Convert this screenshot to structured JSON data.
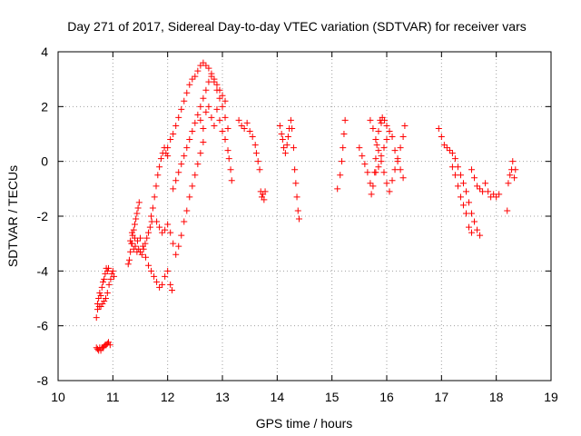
{
  "chart_data": {
    "type": "scatter",
    "title": "Day 271 of 2017, Sidereal Day-to-day VTEC variation (SDTVAR) for receiver vars",
    "xlabel": "GPS time / hours",
    "ylabel": "SDTVAR / TECUs",
    "xlim": [
      10,
      19
    ],
    "ylim": [
      -8,
      4
    ],
    "xticks": [
      10,
      11,
      12,
      13,
      14,
      15,
      16,
      17,
      18,
      19
    ],
    "yticks": [
      -8,
      -6,
      -4,
      -2,
      0,
      2,
      4
    ],
    "grid": true,
    "marker": "+",
    "color": "#ff0000",
    "series": [
      {
        "name": "SDTVAR",
        "points": [
          [
            10.7,
            -5.7
          ],
          [
            10.72,
            -5.4
          ],
          [
            10.74,
            -5.0
          ],
          [
            10.76,
            -4.8
          ],
          [
            10.78,
            -4.9
          ],
          [
            10.8,
            -4.6
          ],
          [
            10.82,
            -4.4
          ],
          [
            10.84,
            -4.3
          ],
          [
            10.86,
            -4.1
          ],
          [
            10.88,
            -3.9
          ],
          [
            10.9,
            -4.0
          ],
          [
            10.92,
            -3.9
          ],
          [
            10.72,
            -5.2
          ],
          [
            10.75,
            -5.3
          ],
          [
            10.78,
            -5.3
          ],
          [
            10.81,
            -5.2
          ],
          [
            10.84,
            -5.1
          ],
          [
            10.87,
            -5.0
          ],
          [
            10.9,
            -4.8
          ],
          [
            10.93,
            -4.5
          ],
          [
            10.96,
            -4.3
          ],
          [
            10.98,
            -4.1
          ],
          [
            11.0,
            -4.0
          ],
          [
            11.02,
            -4.2
          ],
          [
            10.7,
            -6.8
          ],
          [
            10.72,
            -6.85
          ],
          [
            10.74,
            -6.9
          ],
          [
            10.76,
            -6.8
          ],
          [
            10.78,
            -6.9
          ],
          [
            10.8,
            -6.8
          ],
          [
            10.82,
            -6.8
          ],
          [
            10.84,
            -6.75
          ],
          [
            10.86,
            -6.7
          ],
          [
            10.88,
            -6.7
          ],
          [
            10.9,
            -6.65
          ],
          [
            10.92,
            -6.6
          ],
          [
            10.95,
            -6.7
          ],
          [
            11.28,
            -3.75
          ],
          [
            11.3,
            -3.6
          ],
          [
            11.32,
            -3.3
          ],
          [
            11.34,
            -3.0
          ],
          [
            11.36,
            -2.7
          ],
          [
            11.38,
            -2.5
          ],
          [
            11.4,
            -2.3
          ],
          [
            11.42,
            -2.1
          ],
          [
            11.44,
            -1.9
          ],
          [
            11.46,
            -1.7
          ],
          [
            11.48,
            -1.5
          ],
          [
            11.32,
            -2.9
          ],
          [
            11.35,
            -3.0
          ],
          [
            11.38,
            -3.2
          ],
          [
            11.41,
            -3.1
          ],
          [
            11.44,
            -3.3
          ],
          [
            11.47,
            -3.2
          ],
          [
            11.5,
            -3.3
          ],
          [
            11.53,
            -3.4
          ],
          [
            11.56,
            -3.2
          ],
          [
            11.59,
            -3.0
          ],
          [
            11.62,
            -2.8
          ],
          [
            11.65,
            -2.6
          ],
          [
            11.68,
            -2.4
          ],
          [
            11.71,
            -2.2
          ],
          [
            11.35,
            -2.6
          ],
          [
            11.4,
            -2.8
          ],
          [
            11.45,
            -2.9
          ],
          [
            11.5,
            -2.8
          ],
          [
            11.55,
            -3.1
          ],
          [
            11.6,
            -3.5
          ],
          [
            11.65,
            -3.8
          ],
          [
            11.7,
            -4.0
          ],
          [
            11.75,
            -4.2
          ],
          [
            11.8,
            -4.4
          ],
          [
            11.85,
            -4.6
          ],
          [
            11.9,
            -4.5
          ],
          [
            11.95,
            -4.2
          ],
          [
            12.0,
            -4.0
          ],
          [
            12.05,
            -4.5
          ],
          [
            12.08,
            -4.7
          ],
          [
            11.7,
            -2.0
          ],
          [
            11.73,
            -1.7
          ],
          [
            11.76,
            -1.3
          ],
          [
            11.79,
            -0.9
          ],
          [
            11.82,
            -0.5
          ],
          [
            11.85,
            -0.2
          ],
          [
            11.88,
            0.1
          ],
          [
            11.91,
            0.3
          ],
          [
            11.94,
            0.5
          ],
          [
            11.97,
            0.3
          ],
          [
            12.0,
            0.2
          ],
          [
            11.8,
            -2.2
          ],
          [
            11.85,
            -2.4
          ],
          [
            11.9,
            -2.6
          ],
          [
            11.95,
            -2.5
          ],
          [
            12.0,
            -2.3
          ],
          [
            12.05,
            -2.6
          ],
          [
            12.1,
            -3.0
          ],
          [
            12.15,
            -3.4
          ],
          [
            12.2,
            -3.1
          ],
          [
            12.25,
            -2.7
          ],
          [
            12.3,
            -2.2
          ],
          [
            12.35,
            -1.8
          ],
          [
            12.4,
            -1.3
          ],
          [
            12.45,
            -0.9
          ],
          [
            12.5,
            -0.5
          ],
          [
            12.55,
            -0.1
          ],
          [
            12.6,
            0.3
          ],
          [
            12.65,
            0.7
          ],
          [
            12.0,
            0.5
          ],
          [
            12.05,
            0.8
          ],
          [
            12.1,
            1.0
          ],
          [
            12.15,
            1.3
          ],
          [
            12.2,
            1.6
          ],
          [
            12.25,
            1.9
          ],
          [
            12.3,
            2.2
          ],
          [
            12.35,
            2.5
          ],
          [
            12.4,
            2.8
          ],
          [
            12.45,
            3.0
          ],
          [
            12.5,
            3.1
          ],
          [
            12.55,
            3.3
          ],
          [
            12.6,
            3.5
          ],
          [
            12.65,
            3.6
          ],
          [
            12.7,
            3.5
          ],
          [
            12.75,
            3.4
          ],
          [
            12.8,
            3.2
          ],
          [
            12.85,
            3.0
          ],
          [
            12.9,
            2.8
          ],
          [
            12.95,
            2.6
          ],
          [
            13.0,
            2.4
          ],
          [
            13.05,
            2.2
          ],
          [
            12.1,
            -1.0
          ],
          [
            12.15,
            -0.7
          ],
          [
            12.2,
            -0.4
          ],
          [
            12.25,
            -0.1
          ],
          [
            12.3,
            0.2
          ],
          [
            12.35,
            0.5
          ],
          [
            12.4,
            0.8
          ],
          [
            12.45,
            1.1
          ],
          [
            12.5,
            1.4
          ],
          [
            12.55,
            1.7
          ],
          [
            12.6,
            2.0
          ],
          [
            12.65,
            2.3
          ],
          [
            12.7,
            2.6
          ],
          [
            12.75,
            2.9
          ],
          [
            12.8,
            3.1
          ],
          [
            12.85,
            2.9
          ],
          [
            12.9,
            2.6
          ],
          [
            12.95,
            2.3
          ],
          [
            13.0,
            2.0
          ],
          [
            13.05,
            1.6
          ],
          [
            13.1,
            1.2
          ],
          [
            12.6,
            1.5
          ],
          [
            12.65,
            1.2
          ],
          [
            12.7,
            1.8
          ],
          [
            12.75,
            2.0
          ],
          [
            12.8,
            1.6
          ],
          [
            12.85,
            1.3
          ],
          [
            12.9,
            1.9
          ],
          [
            12.95,
            1.5
          ],
          [
            13.0,
            1.1
          ],
          [
            13.05,
            0.8
          ],
          [
            13.1,
            0.4
          ],
          [
            13.12,
            0.1
          ],
          [
            13.15,
            -0.3
          ],
          [
            13.17,
            -0.7
          ],
          [
            13.3,
            1.5
          ],
          [
            13.35,
            1.3
          ],
          [
            13.4,
            1.2
          ],
          [
            13.45,
            1.4
          ],
          [
            13.5,
            1.1
          ],
          [
            13.55,
            0.9
          ],
          [
            13.6,
            0.6
          ],
          [
            13.62,
            0.3
          ],
          [
            13.65,
            0.0
          ],
          [
            13.68,
            -0.3
          ],
          [
            13.7,
            -1.1
          ],
          [
            13.72,
            -1.3
          ],
          [
            13.74,
            -1.2
          ],
          [
            13.76,
            -1.4
          ],
          [
            13.78,
            -1.1
          ],
          [
            14.05,
            1.3
          ],
          [
            14.08,
            1.0
          ],
          [
            14.1,
            0.8
          ],
          [
            14.12,
            0.5
          ],
          [
            14.15,
            0.3
          ],
          [
            14.18,
            0.6
          ],
          [
            14.2,
            0.9
          ],
          [
            14.22,
            1.2
          ],
          [
            14.25,
            1.5
          ],
          [
            14.27,
            1.2
          ],
          [
            14.3,
            0.5
          ],
          [
            14.32,
            -0.3
          ],
          [
            14.34,
            -0.8
          ],
          [
            14.36,
            -1.3
          ],
          [
            14.38,
            -1.8
          ],
          [
            14.4,
            -2.1
          ],
          [
            15.1,
            -1.0
          ],
          [
            15.15,
            -0.5
          ],
          [
            15.18,
            0.0
          ],
          [
            15.2,
            0.5
          ],
          [
            15.22,
            1.0
          ],
          [
            15.24,
            1.5
          ],
          [
            15.5,
            0.5
          ],
          [
            15.55,
            0.2
          ],
          [
            15.6,
            -0.1
          ],
          [
            15.65,
            -0.4
          ],
          [
            15.7,
            -0.8
          ],
          [
            15.72,
            -1.2
          ],
          [
            15.75,
            -0.9
          ],
          [
            15.78,
            -0.4
          ],
          [
            15.8,
            0.1
          ],
          [
            15.82,
            0.6
          ],
          [
            15.85,
            1.1
          ],
          [
            15.88,
            1.5
          ],
          [
            15.9,
            1.4
          ],
          [
            15.7,
            1.5
          ],
          [
            15.75,
            1.2
          ],
          [
            15.8,
            0.8
          ],
          [
            15.85,
            0.4
          ],
          [
            15.9,
            0.0
          ],
          [
            15.95,
            -0.4
          ],
          [
            16.0,
            -0.8
          ],
          [
            16.05,
            -1.1
          ],
          [
            16.1,
            -0.7
          ],
          [
            16.15,
            -0.3
          ],
          [
            16.2,
            0.1
          ],
          [
            16.25,
            0.5
          ],
          [
            16.3,
            0.9
          ],
          [
            16.33,
            1.3
          ],
          [
            15.8,
            -0.4
          ],
          [
            15.85,
            -0.2
          ],
          [
            15.9,
            0.2
          ],
          [
            15.95,
            0.5
          ],
          [
            16.0,
            0.8
          ],
          [
            16.05,
            1.1
          ],
          [
            16.1,
            0.9
          ],
          [
            16.15,
            0.4
          ],
          [
            16.2,
            0.0
          ],
          [
            16.25,
            -0.3
          ],
          [
            16.3,
            -0.6
          ],
          [
            15.92,
            1.6
          ],
          [
            15.96,
            1.5
          ],
          [
            16.0,
            1.3
          ],
          [
            16.95,
            1.2
          ],
          [
            17.0,
            0.9
          ],
          [
            17.05,
            0.6
          ],
          [
            17.1,
            0.5
          ],
          [
            17.15,
            0.4
          ],
          [
            17.2,
            0.3
          ],
          [
            17.25,
            0.1
          ],
          [
            17.3,
            -0.2
          ],
          [
            17.35,
            -0.5
          ],
          [
            17.4,
            -0.8
          ],
          [
            17.45,
            -1.1
          ],
          [
            17.5,
            -1.5
          ],
          [
            17.55,
            -1.9
          ],
          [
            17.6,
            -2.2
          ],
          [
            17.65,
            -2.5
          ],
          [
            17.7,
            -2.7
          ],
          [
            17.2,
            -0.2
          ],
          [
            17.25,
            -0.5
          ],
          [
            17.3,
            -0.9
          ],
          [
            17.35,
            -1.3
          ],
          [
            17.4,
            -1.6
          ],
          [
            17.45,
            -1.9
          ],
          [
            17.5,
            -2.4
          ],
          [
            17.55,
            -2.6
          ],
          [
            17.55,
            -0.3
          ],
          [
            17.6,
            -0.6
          ],
          [
            17.65,
            -0.9
          ],
          [
            17.7,
            -1.0
          ],
          [
            17.75,
            -1.1
          ],
          [
            17.8,
            -0.8
          ],
          [
            17.85,
            -1.1
          ],
          [
            17.9,
            -1.3
          ],
          [
            17.95,
            -1.2
          ],
          [
            18.0,
            -1.3
          ],
          [
            18.05,
            -1.2
          ],
          [
            18.2,
            -1.8
          ],
          [
            18.22,
            -0.8
          ],
          [
            18.25,
            -0.5
          ],
          [
            18.28,
            -0.3
          ],
          [
            18.3,
            0.0
          ],
          [
            18.33,
            -0.6
          ],
          [
            18.35,
            -0.3
          ]
        ]
      }
    ]
  }
}
